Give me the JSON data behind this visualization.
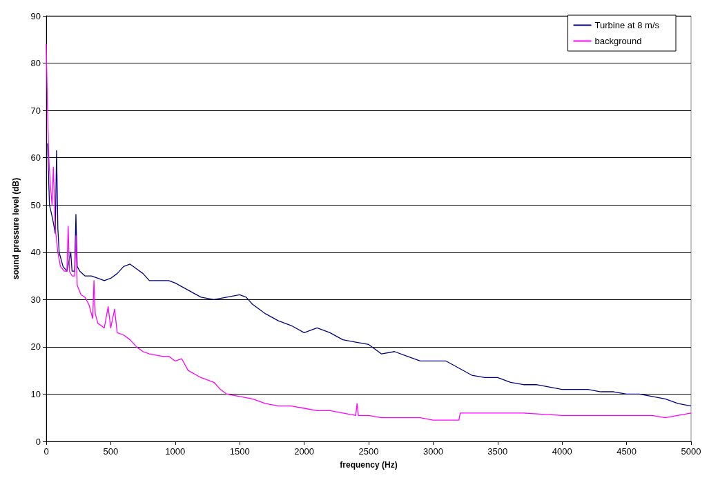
{
  "chart_data": {
    "type": "line",
    "xlabel": "frequency (Hz)",
    "ylabel": "sound pressure level (dB)",
    "xlim": [
      0,
      5000
    ],
    "xticks": [
      0,
      500,
      1000,
      1500,
      2000,
      2500,
      3000,
      3500,
      4000,
      4500,
      5000
    ],
    "ylim": [
      0,
      90
    ],
    "yticks": [
      0,
      10,
      20,
      30,
      40,
      50,
      60,
      70,
      80,
      90
    ],
    "grid": "y",
    "legend": "top right",
    "marker": "none",
    "line_style": "solid",
    "series": [
      {
        "name": "Turbine at 8 m/s",
        "color": "#000080",
        "x": [
          10,
          25,
          50,
          70,
          80,
          90,
          100,
          130,
          160,
          190,
          200,
          220,
          230,
          240,
          260,
          300,
          350,
          400,
          450,
          500,
          550,
          600,
          650,
          700,
          750,
          800,
          900,
          950,
          1000,
          1100,
          1200,
          1300,
          1400,
          1500,
          1550,
          1600,
          1700,
          1800,
          1900,
          2000,
          2100,
          2200,
          2300,
          2400,
          2500,
          2600,
          2700,
          2800,
          2900,
          3000,
          3100,
          3200,
          3300,
          3400,
          3500,
          3600,
          3700,
          3800,
          3900,
          4000,
          4100,
          4200,
          4300,
          4400,
          4500,
          4600,
          4700,
          4800,
          4900,
          5000
        ],
        "values": [
          63,
          50,
          47,
          44,
          61.5,
          45,
          40,
          37,
          36,
          40,
          36,
          36,
          48,
          37,
          36,
          35,
          35,
          34.5,
          34,
          34.5,
          35.5,
          37,
          37.5,
          36.5,
          35.5,
          34,
          34,
          34,
          33.5,
          32,
          30.5,
          30,
          30.5,
          31,
          30.5,
          29,
          27,
          25.5,
          24.5,
          23,
          24,
          23,
          21.5,
          21,
          20.5,
          18.5,
          19,
          18,
          17,
          17,
          17,
          15.5,
          14,
          13.5,
          13.5,
          12.5,
          12,
          12,
          11.5,
          11,
          11,
          11,
          10.5,
          10.5,
          10,
          10,
          9.5,
          9,
          8,
          7.5
        ]
      },
      {
        "name": "background",
        "color": "#ff00ff",
        "x": [
          0,
          10,
          20,
          30,
          45,
          55,
          70,
          90,
          110,
          140,
          160,
          170,
          180,
          200,
          220,
          230,
          240,
          270,
          300,
          330,
          360,
          370,
          380,
          400,
          450,
          480,
          500,
          530,
          550,
          600,
          650,
          700,
          750,
          800,
          900,
          950,
          1000,
          1050,
          1100,
          1200,
          1300,
          1350,
          1400,
          1500,
          1600,
          1700,
          1800,
          1900,
          2000,
          2100,
          2200,
          2300,
          2400,
          2410,
          2420,
          2500,
          2600,
          2700,
          2800,
          2900,
          3000,
          3100,
          3200,
          3210,
          3300,
          3500,
          3700,
          4000,
          4300,
          4500,
          4700,
          4800,
          5000
        ],
        "values": [
          84,
          70,
          60,
          55,
          50,
          58,
          45,
          40,
          37,
          36,
          36,
          45.5,
          36,
          35,
          35,
          43.5,
          33,
          31,
          30.5,
          29,
          26,
          34,
          27,
          25,
          24,
          28.5,
          24,
          28,
          23,
          22.5,
          21.5,
          20,
          19,
          18.5,
          18,
          18,
          17,
          17.5,
          15,
          13.5,
          12.5,
          11,
          10,
          9.5,
          9,
          8,
          7.5,
          7.5,
          7,
          6.5,
          6.5,
          6,
          5.5,
          8,
          5.5,
          5.5,
          5,
          5,
          5,
          5,
          4.5,
          4.5,
          4.5,
          6,
          6,
          6,
          6,
          5.5,
          5.5,
          5.5,
          5.5,
          5,
          6
        ]
      }
    ]
  }
}
